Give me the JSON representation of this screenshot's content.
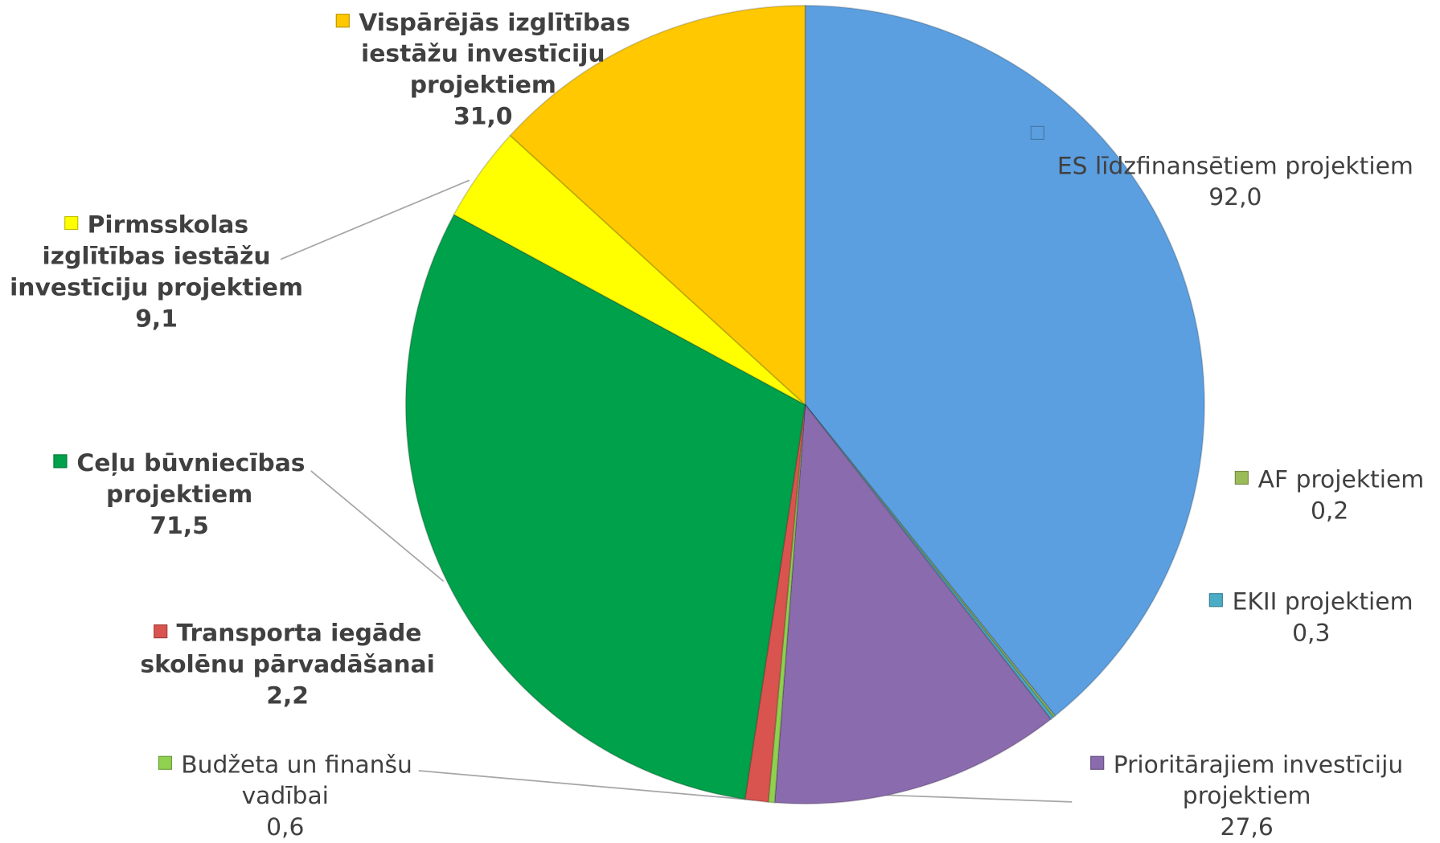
{
  "chart_data": {
    "type": "pie",
    "categories": [
      "ES līdzfinansētiem projektiem",
      "AF projektiem",
      "EKII projektiem",
      "Prioritārajiem investīciju projektiem",
      "Budžeta un finanšu vadībai",
      "Transporta iegāde skolēnu pārvadāšanai",
      "Ceļu būvniecības projektiem",
      "Pirmsskolas izglītības iestāžu investīciju projektiem",
      "Vispārējās izglītības iestāžu investīciju projektiem"
    ],
    "values": [
      92.0,
      0.2,
      0.3,
      27.6,
      0.6,
      2.2,
      71.5,
      9.1,
      31.0
    ],
    "value_labels": [
      "92,0",
      "0,2",
      "0,3",
      "27,6",
      "0,6",
      "2,2",
      "71,5",
      "9,1",
      "31,0"
    ],
    "colors": [
      "#5b9fe0",
      "#9bbb59",
      "#4bacc6",
      "#8a6bad",
      "#8fd14f",
      "#d9534f",
      "#00a14b",
      "#ffff00",
      "#ffc800"
    ]
  }
}
